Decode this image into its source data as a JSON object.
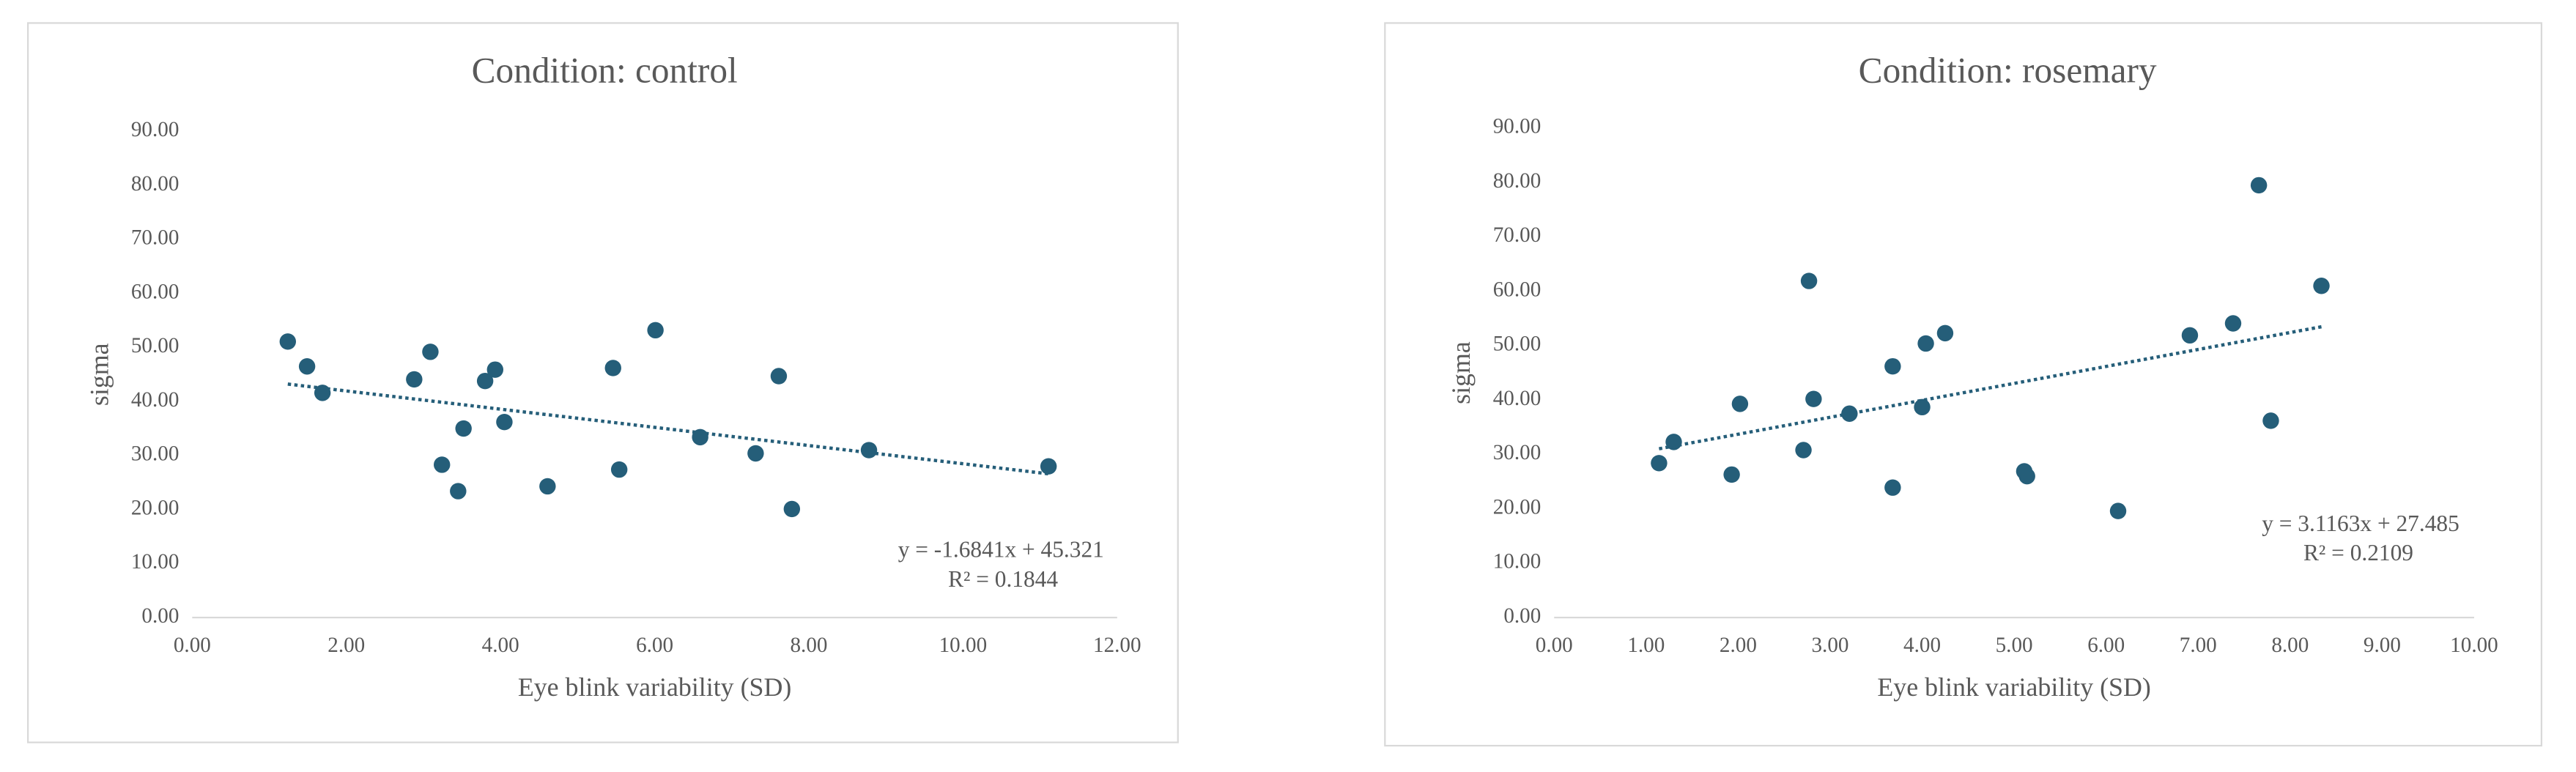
{
  "chart_data": [
    {
      "type": "scatter",
      "title": "Condition: control",
      "x_label": "Eye blink variability (SD)",
      "y_label": "sigma",
      "color": "#255e79",
      "x": [
        1.24,
        1.49,
        1.69,
        2.88,
        3.09,
        3.24,
        3.45,
        3.52,
        3.8,
        3.93,
        4.05,
        4.61,
        5.46,
        5.54,
        6.01,
        6.59,
        7.31,
        7.61,
        7.78,
        8.78,
        11.11
      ],
      "values": [
        51.1,
        46.5,
        41.6,
        44.1,
        49.2,
        28.3,
        23.4,
        35.0,
        43.8,
        45.9,
        36.2,
        24.3,
        46.2,
        27.4,
        53.2,
        33.4,
        30.4,
        44.7,
        20.1,
        31.0,
        28.0
      ],
      "xlim": [
        0,
        12
      ],
      "ylim": [
        0,
        90
      ],
      "xticks": [
        {
          "value": 0,
          "label": "0.00"
        },
        {
          "value": 2,
          "label": "2.00"
        },
        {
          "value": 4,
          "label": "4.00"
        },
        {
          "value": 6,
          "label": "6.00"
        },
        {
          "value": 8,
          "label": "8.00"
        },
        {
          "value": 10,
          "label": "10.00"
        },
        {
          "value": 12,
          "label": "12.00"
        }
      ],
      "yticks": [
        {
          "value": 0,
          "label": "0.00"
        },
        {
          "value": 10,
          "label": "10.00"
        },
        {
          "value": 20,
          "label": "20.00"
        },
        {
          "value": 30,
          "label": "30.00"
        },
        {
          "value": 40,
          "label": "40.00"
        },
        {
          "value": 50,
          "label": "50.00"
        },
        {
          "value": 60,
          "label": "60.00"
        },
        {
          "value": 70,
          "label": "70.00"
        },
        {
          "value": 80,
          "label": "80.00"
        },
        {
          "value": 90,
          "label": "90.00"
        }
      ],
      "grid": false,
      "trendline": {
        "slope": -1.6841,
        "intercept": 45.321,
        "label": "y = -1.6841x + 45.321",
        "r2_label": "R² = 0.1844"
      }
    },
    {
      "type": "scatter",
      "title": "Condition: rosemary",
      "x_label": "Eye blink variability (SD)",
      "y_label": "sigma",
      "color": "#255e79",
      "x": [
        1.14,
        1.3,
        1.93,
        2.02,
        2.71,
        2.77,
        2.82,
        3.21,
        3.68,
        3.68,
        4.0,
        4.04,
        4.25,
        5.11,
        5.14,
        6.13,
        6.91,
        7.38,
        7.66,
        7.79,
        8.34
      ],
      "values": [
        28.4,
        32.3,
        26.3,
        39.3,
        30.8,
        61.9,
        40.2,
        37.5,
        46.2,
        23.9,
        38.7,
        50.4,
        52.3,
        26.9,
        26.0,
        19.6,
        51.9,
        54.1,
        79.5,
        36.2,
        61.0
      ],
      "xlim": [
        0,
        10
      ],
      "ylim": [
        0,
        90
      ],
      "xticks": [
        {
          "value": 0,
          "label": "0.00"
        },
        {
          "value": 1,
          "label": "1.00"
        },
        {
          "value": 2,
          "label": "2.00"
        },
        {
          "value": 3,
          "label": "3.00"
        },
        {
          "value": 4,
          "label": "4.00"
        },
        {
          "value": 5,
          "label": "5.00"
        },
        {
          "value": 6,
          "label": "6.00"
        },
        {
          "value": 7,
          "label": "7.00"
        },
        {
          "value": 8,
          "label": "8.00"
        },
        {
          "value": 9,
          "label": "9.00"
        },
        {
          "value": 10,
          "label": "10.00"
        }
      ],
      "yticks": [
        {
          "value": 0,
          "label": "0.00"
        },
        {
          "value": 10,
          "label": "10.00"
        },
        {
          "value": 20,
          "label": "20.00"
        },
        {
          "value": 30,
          "label": "30.00"
        },
        {
          "value": 40,
          "label": "40.00"
        },
        {
          "value": 50,
          "label": "50.00"
        },
        {
          "value": 60,
          "label": "60.00"
        },
        {
          "value": 70,
          "label": "70.00"
        },
        {
          "value": 80,
          "label": "80.00"
        },
        {
          "value": 90,
          "label": "90.00"
        }
      ],
      "grid": false,
      "trendline": {
        "slope": 3.1163,
        "intercept": 27.485,
        "label": "y = 3.1163x + 27.485",
        "r2_label": "R² = 0.2109"
      }
    }
  ]
}
